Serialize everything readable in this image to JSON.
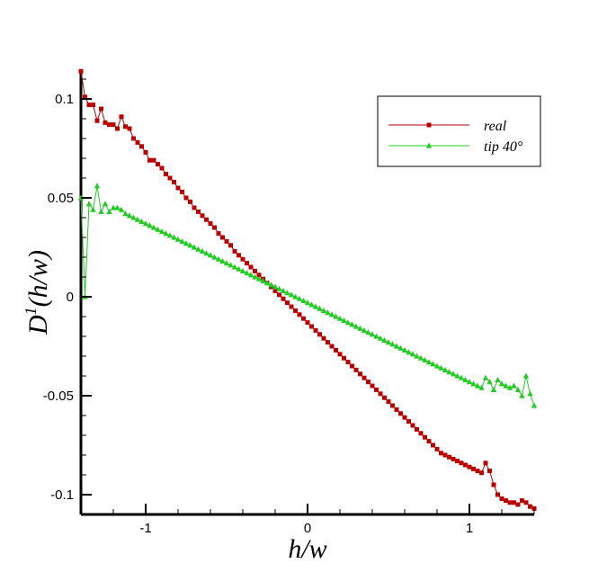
{
  "chart_data": {
    "type": "line",
    "title": "",
    "xlabel": "h/w",
    "ylabel": {
      "main": "D",
      "sup": "1",
      "rest": "(h/w)"
    },
    "xlim": [
      -1.4,
      1.4
    ],
    "ylim": [
      -0.11,
      0.115
    ],
    "xticks": [
      {
        "v": -1,
        "label": "-1"
      },
      {
        "v": 0,
        "label": "0"
      },
      {
        "v": 1,
        "label": "1"
      }
    ],
    "yticks": [
      {
        "v": 0.1,
        "label": "0.1"
      },
      {
        "v": 0.05,
        "label": "0.05"
      },
      {
        "v": 0,
        "label": "0"
      },
      {
        "v": -0.05,
        "label": "-0.05"
      },
      {
        "v": -0.1,
        "label": "-0.1"
      }
    ],
    "grid": false,
    "legend_position": "top-right",
    "series": [
      {
        "name": "real",
        "color": "#bb0000",
        "marker": "square",
        "x": [
          -1.4,
          -1.375,
          -1.35,
          -1.325,
          -1.3,
          -1.275,
          -1.25,
          -1.225,
          -1.2,
          -1.175,
          -1.15,
          -1.125,
          -1.1,
          -1.075,
          -1.05,
          -1.025,
          -1.0,
          -0.975,
          -0.95,
          -0.925,
          -0.9,
          -0.875,
          -0.85,
          -0.825,
          -0.8,
          -0.775,
          -0.75,
          -0.725,
          -0.7,
          -0.675,
          -0.65,
          -0.625,
          -0.6,
          -0.575,
          -0.55,
          -0.525,
          -0.5,
          -0.475,
          -0.45,
          -0.425,
          -0.4,
          -0.375,
          -0.35,
          -0.325,
          -0.3,
          -0.275,
          -0.25,
          -0.225,
          -0.2,
          -0.175,
          -0.15,
          -0.125,
          -0.1,
          -0.075,
          -0.05,
          -0.025,
          0.0,
          0.025,
          0.05,
          0.075,
          0.1,
          0.125,
          0.15,
          0.175,
          0.2,
          0.225,
          0.25,
          0.275,
          0.3,
          0.325,
          0.35,
          0.375,
          0.4,
          0.425,
          0.45,
          0.475,
          0.5,
          0.525,
          0.55,
          0.575,
          0.6,
          0.625,
          0.65,
          0.675,
          0.7,
          0.725,
          0.75,
          0.775,
          0.8,
          0.825,
          0.85,
          0.875,
          0.9,
          0.925,
          0.95,
          0.975,
          1.0,
          1.025,
          1.05,
          1.075,
          1.1,
          1.125,
          1.15,
          1.175,
          1.2,
          1.225,
          1.25,
          1.275,
          1.3,
          1.325,
          1.35,
          1.375,
          1.4
        ],
        "values": [
          0.114,
          0.101,
          0.097,
          0.097,
          0.089,
          0.095,
          0.088,
          0.087,
          0.087,
          0.085,
          0.091,
          0.086,
          0.085,
          0.08,
          0.078,
          0.076,
          0.073,
          0.069,
          0.069,
          0.067,
          0.065,
          0.062,
          0.06,
          0.058,
          0.055,
          0.053,
          0.05,
          0.048,
          0.045,
          0.043,
          0.041,
          0.039,
          0.037,
          0.035,
          0.032,
          0.03,
          0.028,
          0.026,
          0.023,
          0.021,
          0.019,
          0.017,
          0.015,
          0.013,
          0.011,
          0.009,
          0.007,
          0.005,
          0.003,
          0.001,
          -0.001,
          -0.003,
          -0.005,
          -0.007,
          -0.009,
          -0.011,
          -0.013,
          -0.015,
          -0.017,
          -0.019,
          -0.021,
          -0.023,
          -0.025,
          -0.027,
          -0.029,
          -0.031,
          -0.033,
          -0.035,
          -0.037,
          -0.039,
          -0.041,
          -0.043,
          -0.045,
          -0.047,
          -0.049,
          -0.051,
          -0.053,
          -0.055,
          -0.057,
          -0.059,
          -0.061,
          -0.063,
          -0.065,
          -0.067,
          -0.069,
          -0.071,
          -0.073,
          -0.075,
          -0.077,
          -0.079,
          -0.08,
          -0.081,
          -0.082,
          -0.083,
          -0.084,
          -0.085,
          -0.086,
          -0.087,
          -0.088,
          -0.089,
          -0.084,
          -0.088,
          -0.095,
          -0.1,
          -0.102,
          -0.103,
          -0.104,
          -0.104,
          -0.105,
          -0.103,
          -0.104,
          -0.106,
          -0.107
        ]
      },
      {
        "name": "tip 40°",
        "color": "#22cc22",
        "marker": "triangle",
        "x": [
          -1.4,
          -1.375,
          -1.35,
          -1.325,
          -1.3,
          -1.275,
          -1.25,
          -1.225,
          -1.2,
          -1.175,
          -1.15,
          -1.125,
          -1.1,
          -1.075,
          -1.05,
          -1.025,
          -1.0,
          -0.975,
          -0.95,
          -0.925,
          -0.9,
          -0.875,
          -0.85,
          -0.825,
          -0.8,
          -0.775,
          -0.75,
          -0.725,
          -0.7,
          -0.675,
          -0.65,
          -0.625,
          -0.6,
          -0.575,
          -0.55,
          -0.525,
          -0.5,
          -0.475,
          -0.45,
          -0.425,
          -0.4,
          -0.375,
          -0.35,
          -0.325,
          -0.3,
          -0.275,
          -0.25,
          -0.225,
          -0.2,
          -0.175,
          -0.15,
          -0.125,
          -0.1,
          -0.075,
          -0.05,
          -0.025,
          0.0,
          0.025,
          0.05,
          0.075,
          0.1,
          0.125,
          0.15,
          0.175,
          0.2,
          0.225,
          0.25,
          0.275,
          0.3,
          0.325,
          0.35,
          0.375,
          0.4,
          0.425,
          0.45,
          0.475,
          0.5,
          0.525,
          0.55,
          0.575,
          0.6,
          0.625,
          0.65,
          0.675,
          0.7,
          0.725,
          0.75,
          0.775,
          0.8,
          0.825,
          0.85,
          0.875,
          0.9,
          0.925,
          0.95,
          0.975,
          1.0,
          1.025,
          1.05,
          1.075,
          1.1,
          1.125,
          1.15,
          1.175,
          1.2,
          1.225,
          1.25,
          1.275,
          1.3,
          1.325,
          1.35,
          1.375,
          1.4
        ],
        "values": [
          0.05,
          0.0,
          0.047,
          0.044,
          0.056,
          0.043,
          0.047,
          0.043,
          0.045,
          0.045,
          0.044,
          0.042,
          0.041,
          0.04,
          0.039,
          0.038,
          0.037,
          0.036,
          0.035,
          0.034,
          0.033,
          0.032,
          0.031,
          0.03,
          0.029,
          0.028,
          0.027,
          0.026,
          0.025,
          0.024,
          0.023,
          0.022,
          0.021,
          0.02,
          0.019,
          0.018,
          0.017,
          0.016,
          0.015,
          0.014,
          0.013,
          0.012,
          0.011,
          0.01,
          0.009,
          0.008,
          0.007,
          0.006,
          0.005,
          0.004,
          0.003,
          0.002,
          0.001,
          0.0,
          -0.001,
          -0.002,
          -0.003,
          -0.004,
          -0.005,
          -0.006,
          -0.007,
          -0.008,
          -0.009,
          -0.01,
          -0.011,
          -0.012,
          -0.013,
          -0.014,
          -0.015,
          -0.016,
          -0.017,
          -0.018,
          -0.019,
          -0.02,
          -0.021,
          -0.022,
          -0.023,
          -0.024,
          -0.025,
          -0.026,
          -0.027,
          -0.028,
          -0.029,
          -0.03,
          -0.031,
          -0.032,
          -0.033,
          -0.034,
          -0.035,
          -0.036,
          -0.037,
          -0.038,
          -0.039,
          -0.04,
          -0.041,
          -0.042,
          -0.043,
          -0.044,
          -0.045,
          -0.046,
          -0.041,
          -0.043,
          -0.047,
          -0.042,
          -0.044,
          -0.045,
          -0.046,
          -0.045,
          -0.047,
          -0.05,
          -0.04,
          -0.049,
          -0.055
        ]
      }
    ]
  }
}
